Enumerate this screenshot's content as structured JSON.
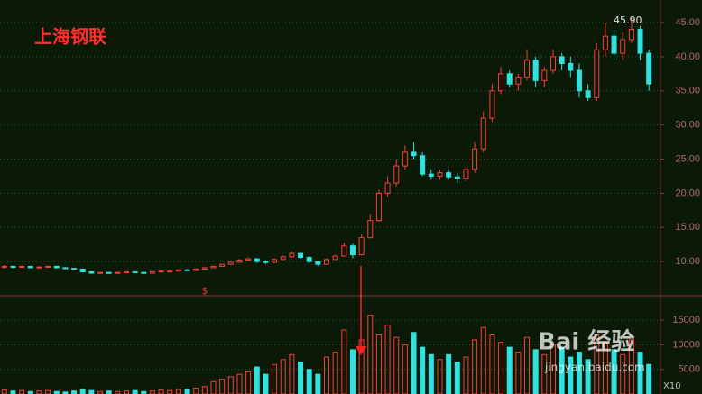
{
  "chart_data": [
    {
      "type": "candlestick",
      "title": "上海钢联",
      "max_label": "45.90",
      "marker": "$",
      "up_color": "#ff3b3b",
      "down_color": "#33e0e0",
      "grid": true,
      "ylim": [
        5,
        48.3
      ],
      "yticks": [
        {
          "value": 10,
          "label": "10.00"
        },
        {
          "value": 15,
          "label": "15.00"
        },
        {
          "value": 20,
          "label": "20.00"
        },
        {
          "value": 25,
          "label": "25.00"
        },
        {
          "value": 30,
          "label": "30.00"
        },
        {
          "value": 35,
          "label": "35.00"
        },
        {
          "value": 40,
          "label": "40.00"
        },
        {
          "value": 45,
          "label": "45.00"
        }
      ],
      "open": [
        9.2,
        9.3,
        9.2,
        9.3,
        9.1,
        9.2,
        9.3,
        9.1,
        9.0,
        8.9,
        8.5,
        8.3,
        8.4,
        8.3,
        8.4,
        8.5,
        8.4,
        8.3,
        8.5,
        8.6,
        8.6,
        8.8,
        8.7,
        8.9,
        9.1,
        9.3,
        9.6,
        9.9,
        10.2,
        10.4,
        10.0,
        9.9,
        10.3,
        10.7,
        11.2,
        10.6,
        10.0,
        9.6,
        10.3,
        10.8,
        12.3,
        11.0,
        13.5,
        16.0,
        20.0,
        21.5,
        24.0,
        26.0,
        25.5,
        22.8,
        22.5,
        23.0,
        22.4,
        22.2,
        23.5,
        26.5,
        31.0,
        35.0,
        37.5,
        36.0,
        37.0,
        39.5,
        36.5,
        38.0,
        40.0,
        39.0,
        38.0,
        35.0,
        34.0,
        41.0,
        43.0,
        40.5,
        42.5,
        44.0,
        40.5
      ],
      "high": [
        9.5,
        9.4,
        9.4,
        9.4,
        9.3,
        9.4,
        9.4,
        9.2,
        9.1,
        9.0,
        8.6,
        8.5,
        8.5,
        8.5,
        8.6,
        8.6,
        8.5,
        8.6,
        8.7,
        8.8,
        8.9,
        8.9,
        9.0,
        9.2,
        9.4,
        9.7,
        10.0,
        10.4,
        10.6,
        10.5,
        10.2,
        10.5,
        10.9,
        11.5,
        11.3,
        10.8,
        10.1,
        10.5,
        11.0,
        12.8,
        12.6,
        14.0,
        17.0,
        20.5,
        22.5,
        25.0,
        27.0,
        27.5,
        26.0,
        23.5,
        23.5,
        23.5,
        23.0,
        24.0,
        27.5,
        32.0,
        36.0,
        38.5,
        38.0,
        37.5,
        41.0,
        40.0,
        38.5,
        41.0,
        40.5,
        40.0,
        39.0,
        36.0,
        42.0,
        45.0,
        44.0,
        43.5,
        45.9,
        44.5,
        41.0
      ],
      "low": [
        9.0,
        9.0,
        9.1,
        9.0,
        9.0,
        9.1,
        9.0,
        8.9,
        8.8,
        8.4,
        8.2,
        8.2,
        8.2,
        8.2,
        8.3,
        8.3,
        8.2,
        8.2,
        8.4,
        8.5,
        8.5,
        8.6,
        8.6,
        8.8,
        9.0,
        9.2,
        9.5,
        9.8,
        10.1,
        9.8,
        9.6,
        9.8,
        10.2,
        10.6,
        10.4,
        9.8,
        9.4,
        9.5,
        10.2,
        10.7,
        10.5,
        10.9,
        13.4,
        15.8,
        19.5,
        21.0,
        23.5,
        25.0,
        22.5,
        22.0,
        22.0,
        22.0,
        21.5,
        21.8,
        23.0,
        26.0,
        30.5,
        34.5,
        35.5,
        35.0,
        36.5,
        35.5,
        35.5,
        37.5,
        38.0,
        37.0,
        34.0,
        33.5,
        33.5,
        40.0,
        39.5,
        39.5,
        42.0,
        39.5,
        35.0
      ],
      "close": [
        9.3,
        9.2,
        9.3,
        9.1,
        9.2,
        9.3,
        9.1,
        9.0,
        8.9,
        8.5,
        8.3,
        8.4,
        8.3,
        8.4,
        8.5,
        8.4,
        8.3,
        8.5,
        8.6,
        8.6,
        8.8,
        8.7,
        8.9,
        9.1,
        9.3,
        9.6,
        9.9,
        10.2,
        10.4,
        10.0,
        9.9,
        10.3,
        10.7,
        11.2,
        10.6,
        10.0,
        9.6,
        10.3,
        10.8,
        12.3,
        11.0,
        13.5,
        16.0,
        20.0,
        21.5,
        24.0,
        26.0,
        25.5,
        22.8,
        22.5,
        23.0,
        22.4,
        22.2,
        23.5,
        26.5,
        31.0,
        35.0,
        37.5,
        36.0,
        37.0,
        39.5,
        36.5,
        38.0,
        40.0,
        39.0,
        38.0,
        35.0,
        34.0,
        41.0,
        43.0,
        40.5,
        42.5,
        44.0,
        40.5,
        36.0
      ]
    },
    {
      "type": "bar",
      "scale_label": "X10",
      "grid": true,
      "ylim": [
        0,
        19600
      ],
      "yticks": [
        5000,
        10000,
        15000
      ],
      "values": [
        800,
        600,
        700,
        500,
        600,
        700,
        500,
        400,
        600,
        900,
        700,
        500,
        600,
        500,
        600,
        700,
        500,
        600,
        800,
        700,
        900,
        1000,
        1200,
        1500,
        2500,
        3000,
        3500,
        4000,
        4500,
        5500,
        4000,
        6000,
        7000,
        8000,
        6500,
        5000,
        4000,
        7500,
        8500,
        13000,
        9000,
        11000,
        16000,
        12000,
        14000,
        11500,
        10000,
        12500,
        9500,
        8000,
        7000,
        8000,
        6500,
        7500,
        11000,
        13500,
        12000,
        10500,
        9500,
        8500,
        11500,
        9000,
        8000,
        10000,
        9500,
        7500,
        8500,
        7000,
        12000,
        10500,
        9000,
        8000,
        11000,
        8500,
        6000
      ]
    }
  ],
  "watermark": {
    "brand": "Bai 经验",
    "url": "jingyan.baidu.com"
  }
}
